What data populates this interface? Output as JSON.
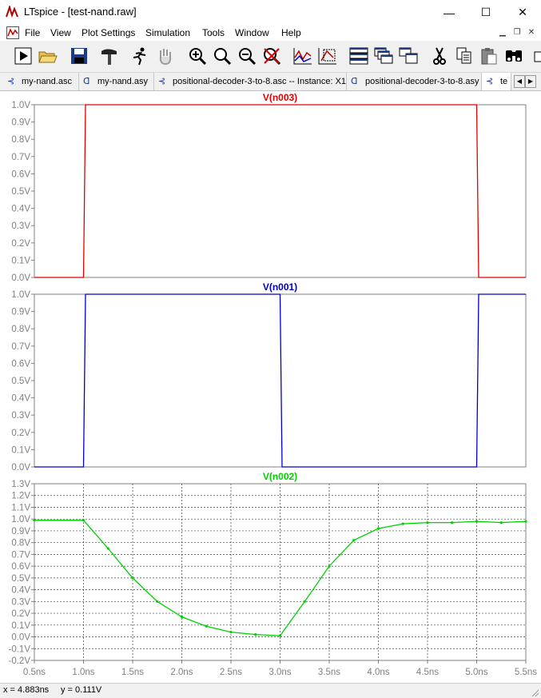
{
  "window": {
    "title": "LTspice - [test-nand.raw]",
    "minimize": "—",
    "maximize": "☐",
    "close": "✕"
  },
  "menu": [
    "File",
    "View",
    "Plot Settings",
    "Simulation",
    "Tools",
    "Window",
    "Help"
  ],
  "toolbar": [
    "run-icon",
    "open-icon",
    "save-icon",
    "hammer-icon",
    "runner-icon",
    "pan-hand-icon",
    "zoom-in-icon",
    "zoom-area-icon",
    "zoom-out-icon",
    "zoom-cancel-icon",
    "autorange-icon",
    "fit-icon",
    "tile-horizontal-icon",
    "cascade-icon",
    "tile-vertical-icon",
    "cut-icon",
    "copy-icon",
    "paste-icon",
    "find-icon"
  ],
  "tabs": [
    {
      "label": "my-nand.asc",
      "kind": "schematic"
    },
    {
      "label": "my-nand.asy",
      "kind": "symbol"
    },
    {
      "label": "positional-decoder-3-to-8.asc -- Instance: X1",
      "kind": "schematic"
    },
    {
      "label": "positional-decoder-3-to-8.asy",
      "kind": "symbol"
    },
    {
      "label": "te",
      "kind": "schematic"
    }
  ],
  "colors": {
    "n003": "#e00000",
    "n001": "#0000cc",
    "n002": "#00d000"
  },
  "chart_data": [
    {
      "type": "line",
      "title": "V(n003)",
      "x": [
        0.5,
        1.0,
        1.02,
        5.0,
        5.02,
        5.5
      ],
      "values": [
        0.0,
        0.0,
        1.0,
        1.0,
        0.0,
        0.0
      ],
      "ylim": [
        0.0,
        1.0
      ],
      "yticks": [
        "1.0V",
        "0.9V",
        "0.8V",
        "0.7V",
        "0.6V",
        "0.5V",
        "0.4V",
        "0.3V",
        "0.2V",
        "0.1V",
        "0.0V"
      ],
      "grid": false
    },
    {
      "type": "line",
      "title": "V(n001)",
      "x": [
        0.5,
        1.0,
        1.02,
        3.0,
        3.02,
        5.0,
        5.02,
        5.5
      ],
      "values": [
        0.0,
        0.0,
        1.0,
        1.0,
        0.0,
        0.0,
        1.0,
        1.0
      ],
      "ylim": [
        0.0,
        1.0
      ],
      "yticks": [
        "1.0V",
        "0.9V",
        "0.8V",
        "0.7V",
        "0.6V",
        "0.5V",
        "0.4V",
        "0.3V",
        "0.2V",
        "0.1V",
        "0.0V"
      ],
      "grid": false
    },
    {
      "type": "line",
      "title": "V(n002)",
      "x": [
        0.5,
        1.0,
        1.25,
        1.5,
        1.75,
        2.0,
        2.25,
        2.5,
        2.75,
        3.0,
        3.25,
        3.5,
        3.75,
        4.0,
        4.25,
        4.5,
        4.75,
        5.0,
        5.25,
        5.5
      ],
      "values": [
        0.99,
        0.99,
        0.75,
        0.5,
        0.3,
        0.17,
        0.09,
        0.04,
        0.02,
        0.01,
        0.3,
        0.6,
        0.82,
        0.92,
        0.96,
        0.97,
        0.97,
        0.98,
        0.97,
        0.98
      ],
      "ylim": [
        -0.2,
        1.3
      ],
      "yticks": [
        "1.3V",
        "1.2V",
        "1.1V",
        "1.0V",
        "0.9V",
        "0.8V",
        "0.7V",
        "0.6V",
        "0.5V",
        "0.4V",
        "0.3V",
        "0.2V",
        "0.1V",
        "0.0V",
        "-0.1V",
        "-0.2V"
      ],
      "xticks": [
        "0.5ns",
        "1.0ns",
        "1.5ns",
        "2.0ns",
        "2.5ns",
        "3.0ns",
        "3.5ns",
        "4.0ns",
        "4.5ns",
        "5.0ns",
        "5.5ns"
      ],
      "xlim": [
        0.5,
        5.5
      ],
      "grid": true
    }
  ],
  "status": {
    "x": "x = 4.883ns",
    "y": "y = 0.111V"
  }
}
